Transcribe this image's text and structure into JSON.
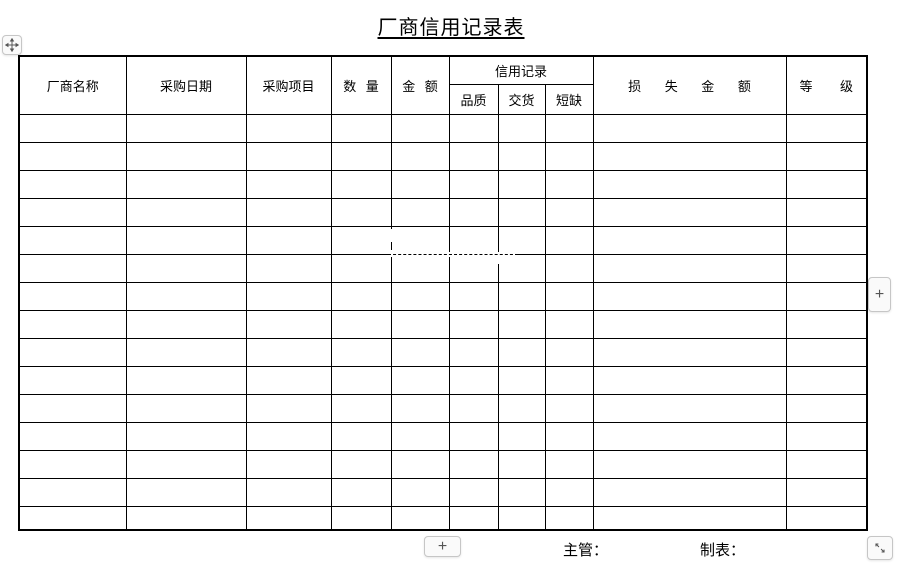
{
  "document": {
    "title": "厂商信用记录表",
    "footer": {
      "supervisor_label": "主管：",
      "preparer_label": "制表："
    }
  },
  "table": {
    "group_header": "信用记录",
    "columns": [
      {
        "key": "vendor_name",
        "label": "厂商名称"
      },
      {
        "key": "purchase_date",
        "label": "采购日期"
      },
      {
        "key": "purchase_item",
        "label": "采购项目"
      },
      {
        "key": "quantity",
        "label": "数 量"
      },
      {
        "key": "amount",
        "label": "金 额"
      },
      {
        "key": "credit_quality",
        "label": "品质"
      },
      {
        "key": "credit_delivery",
        "label": "交货"
      },
      {
        "key": "credit_shortage",
        "label": "短缺"
      },
      {
        "key": "loss_amount",
        "label": "损 失 金 额"
      },
      {
        "key": "grade",
        "label": "等 级"
      }
    ],
    "body_row_count": 15,
    "body_cells_empty": true
  },
  "controls": {
    "move_handle": {
      "icon": "move-arrows-icon"
    },
    "add_column_button": {
      "label": "+",
      "icon": "plus-icon"
    },
    "add_row_button": {
      "label": "+",
      "icon": "plus-icon"
    },
    "resize_handle": {
      "icon": "resize-diagonal-icon"
    }
  },
  "colors": {
    "page_bg": "#ffffff",
    "table_border": "#000000",
    "text": "#000000",
    "button_border": "#c6c6c6",
    "button_bg": "#fafafa",
    "button_icon": "#555555"
  }
}
